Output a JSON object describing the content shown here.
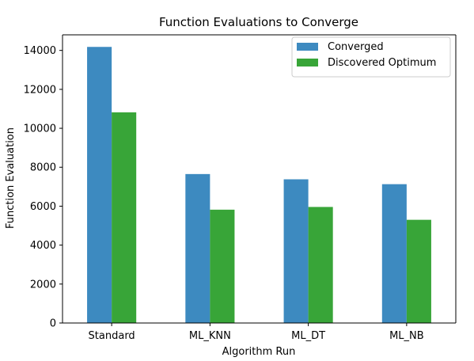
{
  "chart_data": {
    "type": "bar",
    "title": "Function Evaluations to Converge",
    "xlabel": "Algorithm Run",
    "ylabel": "Function Evaluation",
    "categories": [
      "Standard",
      "ML_KNN",
      "ML_DT",
      "ML_NB"
    ],
    "series": [
      {
        "name": "Converged",
        "color": "#3d8ac0",
        "values": [
          14180,
          7650,
          7380,
          7130
        ]
      },
      {
        "name": "Discovered Optimum",
        "color": "#38a538",
        "values": [
          10820,
          5820,
          5960,
          5300
        ]
      }
    ],
    "ylim": [
      0,
      14800
    ],
    "yticks": [
      0,
      2000,
      4000,
      6000,
      8000,
      10000,
      12000,
      14000
    ],
    "grid": false,
    "legend_position": "top-right"
  }
}
